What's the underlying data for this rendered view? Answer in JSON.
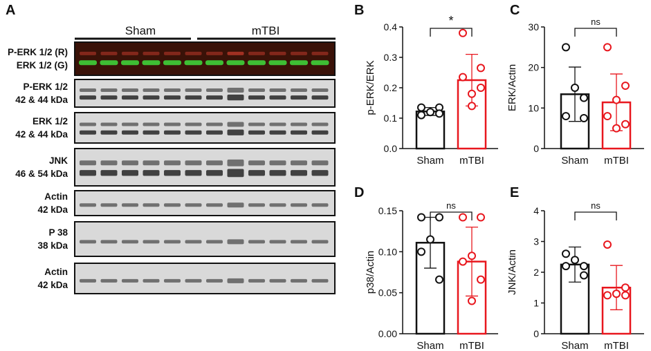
{
  "panel_letters": {
    "A": "A",
    "B": "B",
    "C": "C",
    "D": "D",
    "E": "E"
  },
  "groups": {
    "sham": "Sham",
    "mtbi": "mTBI"
  },
  "blots": [
    {
      "line1": "P-ERK 1/2 (R)",
      "line2": "ERK 1/2 (G)"
    },
    {
      "line1": "P-ERK 1/2",
      "line2": "42 & 44 kDa"
    },
    {
      "line1": "ERK 1/2",
      "line2": "42 & 44 kDa"
    },
    {
      "line1": "JNK",
      "line2": "46 & 54 kDa"
    },
    {
      "line1": "Actin",
      "line2": "42 kDa"
    },
    {
      "line1": "P 38",
      "line2": "38 kDa"
    },
    {
      "line1": "Actin",
      "line2": "42 kDa"
    }
  ],
  "colors": {
    "sham": "#111111",
    "mtbi": "#e8161d"
  },
  "chart_data": [
    {
      "id": "B",
      "type": "bar",
      "categories": [
        "Sham",
        "mTBI"
      ],
      "ylabel": "p-ERK/ERK",
      "ylim": [
        0,
        0.4
      ],
      "yticks": [
        "0.0",
        "0.1",
        "0.2",
        "0.3",
        "0.4"
      ],
      "tick_values": [
        0,
        0.1,
        0.2,
        0.3,
        0.4
      ],
      "means": [
        0.122,
        0.225
      ],
      "sd": [
        0.013,
        0.085
      ],
      "points": [
        [
          0.135,
          0.135,
          0.12,
          0.11,
          0.115
        ],
        [
          0.38,
          0.265,
          0.18,
          0.235,
          0.2,
          0.14
        ]
      ],
      "significance": "*"
    },
    {
      "id": "C",
      "type": "bar",
      "categories": [
        "Sham",
        "mTBI"
      ],
      "ylabel": "ERK/Actin",
      "ylim": [
        0,
        30
      ],
      "yticks": [
        "0",
        "10",
        "20",
        "30"
      ],
      "tick_values": [
        0,
        10,
        20,
        30
      ],
      "means": [
        13.4,
        11.4
      ],
      "sd": [
        6.7,
        7.0
      ],
      "points": [
        [
          25,
          12.5,
          15,
          8,
          7.5
        ],
        [
          25,
          15.5,
          12,
          8,
          6,
          5
        ]
      ],
      "significance": "ns"
    },
    {
      "id": "D",
      "type": "bar",
      "categories": [
        "Sham",
        "mTBI"
      ],
      "ylabel": "p38/Actin",
      "ylim": [
        0,
        0.15
      ],
      "yticks": [
        "0.00",
        "0.05",
        "0.10",
        "0.15"
      ],
      "tick_values": [
        0,
        0.05,
        0.1,
        0.15
      ],
      "means": [
        0.111,
        0.088
      ],
      "sd": [
        0.031,
        0.042
      ],
      "points": [
        [
          0.142,
          0.142,
          0.115,
          0.1,
          0.066
        ],
        [
          0.142,
          0.142,
          0.095,
          0.088,
          0.066,
          0.04
        ]
      ],
      "significance": "ns"
    },
    {
      "id": "E",
      "type": "bar",
      "categories": [
        "Sham",
        "mTBI"
      ],
      "ylabel": "JNK/Actin",
      "ylim": [
        0,
        4
      ],
      "yticks": [
        "0",
        "1",
        "2",
        "3",
        "4"
      ],
      "tick_values": [
        0,
        1,
        2,
        3,
        4
      ],
      "means": [
        2.25,
        1.5
      ],
      "sd": [
        0.57,
        0.72
      ],
      "points": [
        [
          2.6,
          2.2,
          2.4,
          2.2,
          1.9
        ],
        [
          2.9,
          1.5,
          1.3,
          1.25,
          1.25,
          1.3
        ]
      ],
      "significance": "ns"
    }
  ]
}
